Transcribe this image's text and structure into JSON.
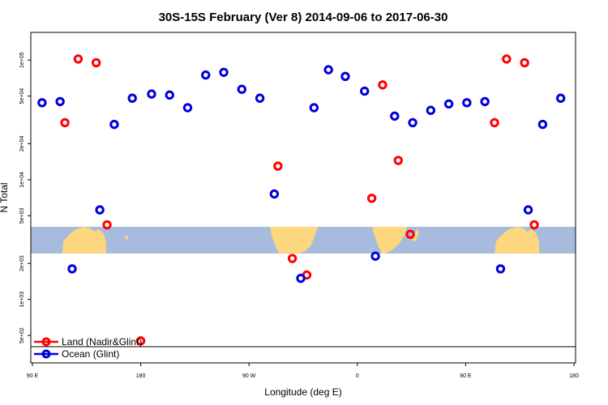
{
  "chart_data": {
    "type": "scatter",
    "title": "30S-15S February (Ver 8)   2014-09-06 to 2017-06-30",
    "xlabel": "Longitude (deg E)",
    "ylabel": "N Total",
    "x_scale": "linear",
    "y_scale": "log",
    "xlim": [
      90,
      540
    ],
    "ylim": [
      350,
      160000
    ],
    "x_ticks": [
      {
        "value": 90,
        "label": "90 E"
      },
      {
        "value": 180,
        "label": "180"
      },
      {
        "value": 270,
        "label": "90 W"
      },
      {
        "value": 360,
        "label": "0"
      },
      {
        "value": 450,
        "label": "90 E"
      },
      {
        "value": 540,
        "label": "180"
      }
    ],
    "y_ticks": [
      {
        "value": 500,
        "label": "5e+02"
      },
      {
        "value": 1000,
        "label": "1e+03"
      },
      {
        "value": 2000,
        "label": "2e+03"
      },
      {
        "value": 5000,
        "label": "5e+03"
      },
      {
        "value": 10000,
        "label": "1e+04"
      },
      {
        "value": 20000,
        "label": "2e+04"
      },
      {
        "value": 50000,
        "label": "5e+04"
      },
      {
        "value": 100000,
        "label": "1e+05"
      }
    ],
    "legend_position": "bottom-left",
    "series": [
      {
        "name": "Land (Nadir&Glint)",
        "color": "#ff0000",
        "points": [
          {
            "x": 117,
            "y": 30000
          },
          {
            "x": 128,
            "y": 102000
          },
          {
            "x": 143,
            "y": 95000
          },
          {
            "x": 152,
            "y": 4200
          },
          {
            "x": 180,
            "y": 450
          },
          {
            "x": 294,
            "y": 13000
          },
          {
            "x": 306,
            "y": 2200
          },
          {
            "x": 318,
            "y": 1600
          },
          {
            "x": 372,
            "y": 7000
          },
          {
            "x": 381,
            "y": 62000
          },
          {
            "x": 394,
            "y": 14500
          },
          {
            "x": 404,
            "y": 3500
          },
          {
            "x": 474,
            "y": 30000
          },
          {
            "x": 484,
            "y": 102000
          },
          {
            "x": 499,
            "y": 95000
          },
          {
            "x": 507,
            "y": 4200
          }
        ]
      },
      {
        "name": "Ocean (Glint)",
        "color": "#0000dd",
        "points": [
          {
            "x": 98,
            "y": 44000
          },
          {
            "x": 113,
            "y": 45000
          },
          {
            "x": 123,
            "y": 1800
          },
          {
            "x": 146,
            "y": 5600
          },
          {
            "x": 158,
            "y": 29000
          },
          {
            "x": 173,
            "y": 48000
          },
          {
            "x": 189,
            "y": 52000
          },
          {
            "x": 204,
            "y": 51000
          },
          {
            "x": 219,
            "y": 40000
          },
          {
            "x": 234,
            "y": 75000
          },
          {
            "x": 249,
            "y": 79000
          },
          {
            "x": 264,
            "y": 57000
          },
          {
            "x": 279,
            "y": 48000
          },
          {
            "x": 291,
            "y": 7600
          },
          {
            "x": 313,
            "y": 1500
          },
          {
            "x": 324,
            "y": 40000
          },
          {
            "x": 336,
            "y": 83000
          },
          {
            "x": 350,
            "y": 73000
          },
          {
            "x": 366,
            "y": 55000
          },
          {
            "x": 375,
            "y": 2300
          },
          {
            "x": 391,
            "y": 34000
          },
          {
            "x": 406,
            "y": 30000
          },
          {
            "x": 421,
            "y": 38000
          },
          {
            "x": 436,
            "y": 43000
          },
          {
            "x": 451,
            "y": 44000
          },
          {
            "x": 466,
            "y": 45000
          },
          {
            "x": 479,
            "y": 1800
          },
          {
            "x": 502,
            "y": 5600
          },
          {
            "x": 514,
            "y": 29000
          },
          {
            "x": 529,
            "y": 48000
          }
        ]
      }
    ]
  }
}
